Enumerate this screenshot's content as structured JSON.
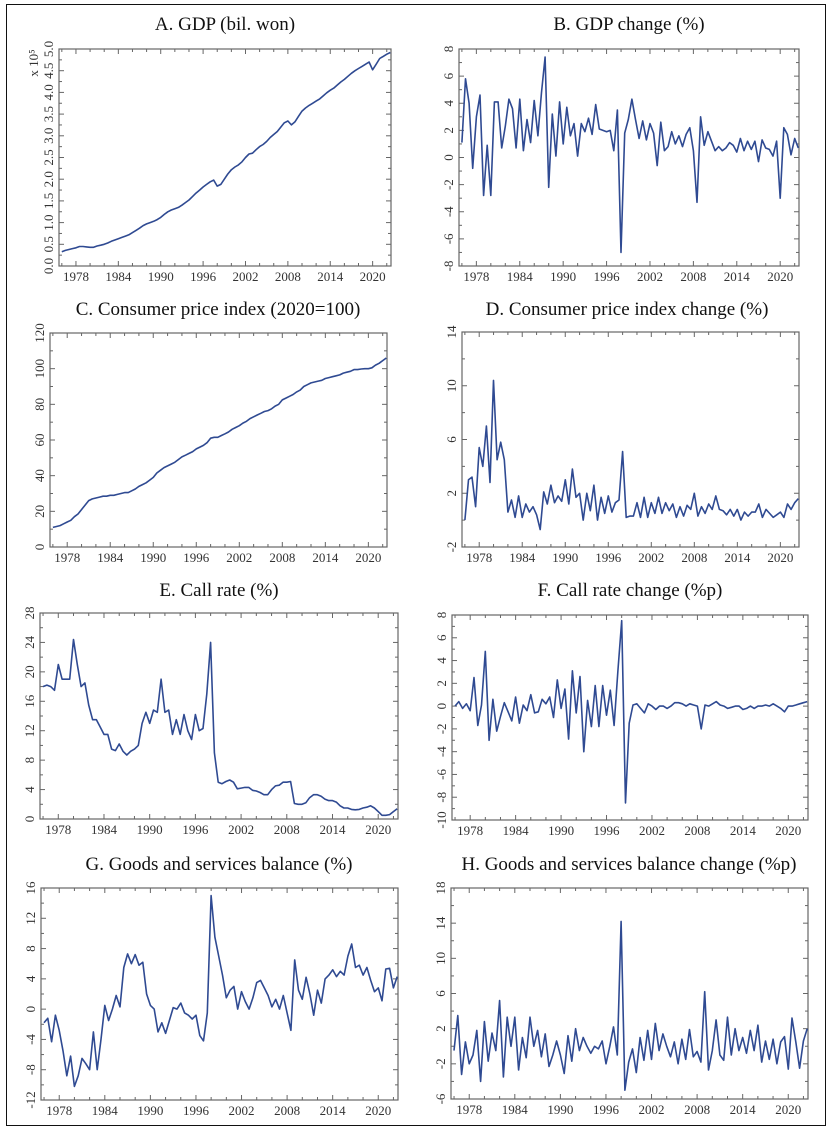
{
  "colors": {
    "line": "#2f4a92",
    "axis": "#666666",
    "frame": "#111111"
  },
  "chart_data": [
    {
      "id": "A",
      "type": "line",
      "title": "A. GDP (bil. won)",
      "y_multiplier_label": "x 10⁵",
      "xlim": [
        1975.6,
        2022.6
      ],
      "ylim": [
        0,
        5.0
      ],
      "xticks": [
        1978,
        1984,
        1990,
        1996,
        2002,
        2008,
        2014,
        2020
      ],
      "yticks": [
        0,
        0.5,
        1.0,
        1.5,
        2.0,
        2.5,
        3.0,
        3.5,
        4.0,
        4.5,
        5.0
      ],
      "ytick_labels": [
        "0.0",
        "0.5",
        "1.0",
        "1.5",
        "2.0",
        "2.5",
        "3.0",
        "3.5",
        "4.0",
        "4.5",
        "5.0"
      ],
      "x_start": 1976,
      "x_step": 0.5,
      "values": [
        0.33,
        0.36,
        0.38,
        0.4,
        0.42,
        0.45,
        0.45,
        0.44,
        0.43,
        0.43,
        0.46,
        0.48,
        0.5,
        0.53,
        0.57,
        0.6,
        0.63,
        0.66,
        0.69,
        0.72,
        0.77,
        0.82,
        0.87,
        0.93,
        0.97,
        1.0,
        1.03,
        1.07,
        1.12,
        1.19,
        1.25,
        1.29,
        1.32,
        1.35,
        1.4,
        1.46,
        1.52,
        1.6,
        1.68,
        1.75,
        1.82,
        1.88,
        1.94,
        1.98,
        1.84,
        1.88,
        2.0,
        2.12,
        2.22,
        2.28,
        2.33,
        2.4,
        2.5,
        2.58,
        2.6,
        2.68,
        2.75,
        2.8,
        2.87,
        2.96,
        3.03,
        3.1,
        3.2,
        3.3,
        3.34,
        3.25,
        3.32,
        3.45,
        3.57,
        3.64,
        3.7,
        3.75,
        3.8,
        3.85,
        3.92,
        3.99,
        4.05,
        4.1,
        4.17,
        4.24,
        4.3,
        4.37,
        4.44,
        4.5,
        4.55,
        4.6,
        4.65,
        4.7,
        4.52,
        4.65,
        4.78,
        4.83,
        4.88,
        4.92
      ]
    },
    {
      "id": "B",
      "type": "line",
      "title": "B. GDP change (%)",
      "xlim": [
        1975.6,
        2022.6
      ],
      "ylim": [
        -8,
        8
      ],
      "xticks": [
        1978,
        1984,
        1990,
        1996,
        2002,
        2008,
        2014,
        2020
      ],
      "yticks": [
        -8,
        -6,
        -4,
        -2,
        0,
        2,
        4,
        6,
        8
      ],
      "ytick_labels": [
        "-8",
        "-6",
        "-4",
        "-2",
        "0",
        "2",
        "4",
        "6",
        "8"
      ],
      "x_start": 1976,
      "x_step": 0.5,
      "values": [
        1.1,
        5.8,
        4.0,
        -0.8,
        3.0,
        4.6,
        -2.8,
        0.9,
        -2.8,
        4.1,
        4.1,
        0.7,
        2.3,
        4.3,
        3.6,
        0.7,
        4.3,
        0.5,
        2.8,
        1.1,
        4.2,
        1.6,
        4.8,
        7.4,
        -2.2,
        3.2,
        0.1,
        4.1,
        1.0,
        3.7,
        1.6,
        2.5,
        0.1,
        2.5,
        1.9,
        2.9,
        1.7,
        3.9,
        2.1,
        2.0,
        1.9,
        2.0,
        0.5,
        3.5,
        -7.0,
        1.8,
        2.8,
        4.3,
        2.8,
        1.4,
        2.7,
        1.3,
        2.5,
        1.8,
        -0.6,
        2.6,
        0.5,
        0.8,
        1.9,
        1.0,
        1.6,
        0.8,
        1.7,
        2.2,
        0.5,
        -3.3,
        3.0,
        0.9,
        1.9,
        1.2,
        0.5,
        0.8,
        0.5,
        0.7,
        1.1,
        0.9,
        0.4,
        1.4,
        0.5,
        1.2,
        0.6,
        1.2,
        -0.3,
        1.3,
        0.7,
        0.6,
        0.1,
        1.2,
        -3.0,
        2.2,
        1.7,
        0.2,
        1.4,
        0.7
      ]
    },
    {
      "id": "C",
      "type": "line",
      "title": "C. Consumer price index (2020=100)",
      "xlim": [
        1975.6,
        2022.6
      ],
      "ylim": [
        0,
        120
      ],
      "xticks": [
        1978,
        1984,
        1990,
        1996,
        2002,
        2008,
        2014,
        2020
      ],
      "yticks": [
        0,
        20,
        40,
        60,
        80,
        100,
        120
      ],
      "ytick_labels": [
        "0",
        "20",
        "40",
        "60",
        "80",
        "100",
        "120"
      ],
      "x_start": 1976,
      "x_step": 0.5,
      "values": [
        11,
        11.5,
        12,
        13,
        14,
        15,
        17,
        18.5,
        21,
        23.5,
        26,
        27,
        27.5,
        28,
        28.5,
        28.5,
        29,
        29,
        29.5,
        30,
        30.5,
        30.5,
        31.5,
        32.5,
        34,
        35,
        36,
        37.5,
        39,
        41.5,
        43,
        44.5,
        45.5,
        46.5,
        47.5,
        49,
        50.5,
        51.5,
        52.5,
        53.5,
        55,
        56,
        57,
        58.5,
        61,
        61.5,
        61.5,
        62.5,
        63.5,
        64.5,
        66,
        67,
        68,
        69.5,
        70.5,
        72,
        73,
        74,
        75,
        76,
        76.5,
        77.5,
        79,
        80,
        82.5,
        83.5,
        84.5,
        85.5,
        87,
        88,
        90,
        91,
        92,
        92.5,
        93,
        93.5,
        94.5,
        95,
        95.5,
        96,
        96.5,
        97.5,
        98,
        98.5,
        99.5,
        99.5,
        99.8,
        100,
        100,
        100.5,
        102,
        103,
        104.5,
        106
      ]
    },
    {
      "id": "D",
      "type": "line",
      "title": "D. Consumer price index change (%)",
      "xlim": [
        1975.6,
        2022.6
      ],
      "ylim": [
        -2,
        14
      ],
      "xticks": [
        1978,
        1984,
        1990,
        1996,
        2002,
        2008,
        2014,
        2020
      ],
      "yticks": [
        -2,
        2,
        6,
        10,
        14
      ],
      "ytick_labels": [
        "-2",
        "2",
        "6",
        "10",
        "14"
      ],
      "x_start": 1976,
      "x_step": 0.5,
      "values": [
        0.0,
        3.0,
        3.2,
        1.0,
        5.4,
        4.0,
        7.0,
        2.8,
        10.4,
        4.5,
        5.8,
        4.5,
        0.6,
        1.5,
        0.2,
        1.8,
        0.2,
        1.2,
        0.6,
        1.0,
        0.4,
        -0.7,
        2.1,
        1.2,
        2.6,
        1.3,
        1.8,
        1.4,
        3.0,
        1.2,
        3.8,
        1.7,
        2.0,
        0.0,
        2.0,
        0.7,
        2.6,
        0.0,
        1.7,
        0.5,
        1.8,
        0.6,
        1.3,
        1.5,
        5.1,
        0.2,
        0.3,
        0.3,
        1.3,
        0.2,
        1.7,
        0.2,
        1.3,
        0.5,
        1.7,
        0.5,
        1.3,
        0.7,
        1.2,
        0.2,
        1.0,
        0.3,
        1.1,
        0.8,
        2.0,
        0.3,
        1.0,
        0.5,
        1.2,
        0.8,
        1.8,
        0.8,
        0.7,
        0.4,
        0.8,
        0.3,
        0.8,
        0.0,
        0.6,
        0.3,
        0.6,
        0.6,
        1.2,
        0.2,
        0.8,
        0.5,
        0.2,
        0.4,
        0.6,
        0.2,
        1.2,
        0.8,
        1.3,
        1.6
      ]
    },
    {
      "id": "E",
      "type": "line",
      "title": "E. Call rate (%)",
      "xlim": [
        1975.6,
        2022.6
      ],
      "ylim": [
        0,
        28
      ],
      "xticks": [
        1978,
        1984,
        1990,
        1996,
        2002,
        2008,
        2014,
        2020
      ],
      "yticks": [
        0,
        4,
        8,
        12,
        16,
        20,
        24,
        28
      ],
      "ytick_labels": [
        "0",
        "4",
        "8",
        "12",
        "16",
        "20",
        "24",
        "28"
      ],
      "x_start": 1976,
      "x_step": 0.5,
      "values": [
        18,
        18.2,
        18,
        17.5,
        21,
        19,
        19,
        19,
        24.4,
        21,
        18,
        18.5,
        15.5,
        13.5,
        13.5,
        12.5,
        11.5,
        11.5,
        9.5,
        9.3,
        10.2,
        9.2,
        8.7,
        9.2,
        9.5,
        10,
        13,
        14.5,
        13,
        14.8,
        14.5,
        19,
        14.5,
        14.8,
        11.5,
        13.5,
        11.5,
        14.2,
        12,
        10.8,
        14.2,
        12,
        12.3,
        17,
        24,
        9,
        5,
        4.8,
        5.1,
        5.3,
        5,
        4.1,
        4.2,
        4.3,
        4.3,
        3.9,
        3.8,
        3.6,
        3.3,
        3.3,
        4.0,
        4.5,
        4.6,
        5.0,
        5.0,
        5.1,
        2.1,
        2.0,
        2.0,
        2.2,
        2.9,
        3.3,
        3.3,
        3.1,
        2.7,
        2.5,
        2.5,
        2.3,
        1.8,
        1.5,
        1.5,
        1.3,
        1.25,
        1.3,
        1.5,
        1.6,
        1.8,
        1.5,
        1.0,
        0.5,
        0.5,
        0.6,
        1.0,
        1.4
      ]
    },
    {
      "id": "F",
      "type": "line",
      "title": "F. Call rate change (%p)",
      "xlim": [
        1975.6,
        2022.6
      ],
      "ylim": [
        -10,
        8
      ],
      "xticks": [
        1978,
        1984,
        1990,
        1996,
        2002,
        2008,
        2014,
        2020
      ],
      "yticks": [
        -10,
        -8,
        -6,
        -4,
        -2,
        0,
        2,
        4,
        6,
        8
      ],
      "ytick_labels": [
        "-10",
        "-8",
        "-6",
        "-4",
        "-2",
        "0",
        "2",
        "4",
        "6",
        "8"
      ],
      "x_start": 1976,
      "x_step": 0.5,
      "values": [
        0.0,
        0.4,
        -0.2,
        0.2,
        -0.4,
        2.5,
        -1.7,
        0.1,
        4.8,
        -3.0,
        0.6,
        -2.2,
        -0.9,
        0.3,
        -0.5,
        -1.3,
        0.8,
        -1.5,
        0.1,
        -0.4,
        1.0,
        -0.6,
        -0.5,
        0.6,
        0.2,
        0.8,
        -1.0,
        2.3,
        -0.2,
        1.5,
        -2.9,
        3.1,
        -0.6,
        2.6,
        -4.0,
        0.5,
        -1.8,
        1.8,
        -1.8,
        1.8,
        -0.8,
        1.4,
        -1.7,
        3.1,
        7.5,
        -8.5,
        -1.5,
        0.1,
        0.2,
        -0.2,
        -0.6,
        0.2,
        0.0,
        -0.3,
        0.0,
        0.0,
        -0.2,
        0.0,
        0.3,
        0.3,
        0.2,
        0.0,
        0.2,
        0.1,
        0.0,
        -2.0,
        0.1,
        0.0,
        0.2,
        0.4,
        0.1,
        0.0,
        -0.2,
        -0.1,
        0.0,
        0.0,
        -0.3,
        -0.2,
        0.0,
        -0.2,
        0.0,
        0.0,
        0.1,
        0.0,
        0.2,
        0.0,
        -0.2,
        -0.5,
        0.0,
        0.0,
        0.1,
        0.2,
        0.3,
        0.4
      ]
    },
    {
      "id": "G",
      "type": "line",
      "title": "G. Goods and services balance (%)",
      "xlim": [
        1975.6,
        2022.6
      ],
      "ylim": [
        -12,
        16
      ],
      "xticks": [
        1978,
        1984,
        1990,
        1996,
        2002,
        2008,
        2014,
        2020
      ],
      "yticks": [
        -12,
        -8,
        -4,
        0,
        4,
        8,
        12,
        16
      ],
      "ytick_labels": [
        "-12",
        "-8",
        "-4",
        "0",
        "4",
        "8",
        "12",
        "16"
      ],
      "x_start": 1976,
      "x_step": 0.5,
      "values": [
        -1.8,
        -1.2,
        -4.3,
        -0.8,
        -2.8,
        -5.5,
        -8.8,
        -6.2,
        -10.2,
        -8.8,
        -6.5,
        -7.2,
        -8.0,
        -3.0,
        -8.0,
        -4.0,
        0.5,
        -1.5,
        0.0,
        1.8,
        0.3,
        5.5,
        7.3,
        6.0,
        7.2,
        5.8,
        6.2,
        2.0,
        0.5,
        0.0,
        -3.0,
        -1.8,
        -3.2,
        -1.5,
        0.2,
        0.0,
        0.8,
        -0.5,
        -0.8,
        -1.3,
        -0.8,
        -3.5,
        -4.2,
        -0.5,
        15.0,
        9.5,
        7.0,
        4.5,
        1.5,
        2.5,
        3.0,
        0.0,
        2.3,
        1.0,
        0.0,
        1.5,
        3.5,
        3.8,
        2.8,
        1.8,
        0.3,
        1.3,
        0.0,
        1.8,
        -0.5,
        -2.8,
        6.5,
        2.5,
        1.3,
        4.2,
        2.0,
        -0.8,
        2.5,
        0.8,
        4.0,
        4.5,
        5.2,
        4.3,
        5.0,
        4.5,
        7.0,
        8.6,
        5.5,
        5.8,
        4.5,
        5.5,
        3.8,
        2.3,
        2.8,
        1.1,
        5.3,
        5.4,
        2.8,
        4.3
      ]
    },
    {
      "id": "H",
      "type": "line",
      "title": "H. Goods and services balance change (%p)",
      "xlim": [
        1975.6,
        2022.6
      ],
      "ylim": [
        -6,
        18
      ],
      "xticks": [
        1978,
        1984,
        1990,
        1996,
        2002,
        2008,
        2014,
        2020
      ],
      "yticks": [
        -6,
        -2,
        2,
        6,
        10,
        14,
        18
      ],
      "ytick_labels": [
        "-6",
        "-2",
        "2",
        "6",
        "10",
        "14",
        "18"
      ],
      "x_start": 1976,
      "x_step": 0.5,
      "values": [
        -0.5,
        3.5,
        -3.2,
        0.5,
        -2.0,
        -1.0,
        1.8,
        -4.0,
        2.8,
        -1.7,
        1.5,
        -0.5,
        5.2,
        -3.5,
        3.3,
        0.0,
        3.3,
        -2.7,
        1.0,
        -1.3,
        3.3,
        0.0,
        1.8,
        -1.2,
        1.4,
        -2.3,
        -1.0,
        0.6,
        -1.0,
        -3.1,
        1.2,
        -1.7,
        2.0,
        -0.5,
        1.0,
        0.0,
        -0.8,
        0.0,
        -0.3,
        0.6,
        -2.0,
        0.0,
        2.2,
        -1.0,
        14.2,
        -5.0,
        -1.8,
        -0.3,
        -3.0,
        1.0,
        -1.6,
        1.8,
        -1.5,
        2.6,
        -0.5,
        1.4,
        0.0,
        -1.2,
        0.5,
        -2.0,
        0.8,
        -1.5,
        1.9,
        -1.2,
        -0.6,
        -1.8,
        6.2,
        -2.7,
        -0.5,
        3.0,
        -1.0,
        -1.6,
        3.3,
        -1.0,
        2.0,
        -0.5,
        1.0,
        -0.8,
        1.8,
        -0.5,
        2.4,
        -1.8,
        0.6,
        -1.5,
        0.8,
        -2.0,
        0.5,
        1.1,
        -2.6,
        3.2,
        0.5,
        -2.5,
        0.6,
        2.0
      ]
    }
  ]
}
